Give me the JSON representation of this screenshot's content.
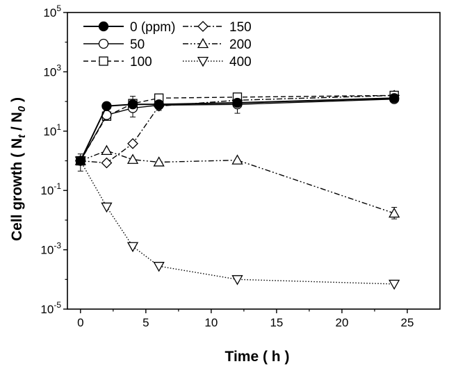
{
  "chart_data": {
    "type": "line",
    "xlabel": "Time ( h )",
    "ylabel_parts": [
      "Cell growth ( N",
      "t",
      " / N",
      "0",
      " )"
    ],
    "xlim": [
      -1,
      27.5
    ],
    "ylim_log10": [
      -5,
      5
    ],
    "yscale": "log",
    "x_ticks": [
      0,
      5,
      10,
      15,
      20,
      25
    ],
    "x_tick_labels": [
      "0",
      "5",
      "10",
      "15",
      "20",
      "25"
    ],
    "y_tick_exponents": [
      5,
      3,
      1,
      -1,
      -3,
      -5
    ],
    "y_tick_base": "10",
    "y_tick_exp_labels": [
      "5",
      "3",
      "1",
      "-1",
      "-3",
      "-5"
    ],
    "legend_position": "top-left",
    "series": [
      {
        "name": "0 (ppm)",
        "marker": "filled-circle",
        "dash": "solid",
        "stroke_width": 2,
        "x": [
          0,
          2,
          4,
          6,
          12,
          24
        ],
        "y": [
          1,
          70,
          80,
          80,
          90,
          130
        ]
      },
      {
        "name": "50",
        "marker": "circle",
        "dash": "solid",
        "stroke_width": 1.4,
        "x": [
          0,
          2,
          4,
          6,
          12,
          24
        ],
        "y": [
          1,
          35,
          60,
          75,
          80,
          120
        ]
      },
      {
        "name": "100",
        "marker": "square",
        "dash": "dashed",
        "stroke_width": 1.4,
        "x": [
          0,
          2,
          4,
          6,
          12,
          24
        ],
        "y": [
          1,
          32,
          85,
          130,
          140,
          160
        ]
      },
      {
        "name": "150",
        "marker": "diamond",
        "dash": "dashdot",
        "stroke_width": 1.4,
        "x": [
          0,
          2,
          4,
          6,
          12,
          24
        ],
        "y": [
          1,
          0.85,
          3.8,
          70,
          110,
          160
        ]
      },
      {
        "name": "200",
        "marker": "triangle-up",
        "dash": "dashdotdot",
        "stroke_width": 1.4,
        "x": [
          0,
          2,
          4,
          6,
          12,
          24
        ],
        "y": [
          1,
          2.2,
          1.1,
          0.9,
          1.05,
          0.017
        ]
      },
      {
        "name": "400",
        "marker": "triangle-down",
        "dash": "dotted",
        "stroke_width": 1.4,
        "x": [
          0,
          2,
          6,
          4,
          12,
          24
        ],
        "y": [
          1,
          0.028,
          0.00028,
          0.0013,
          0.0001,
          7e-05
        ]
      }
    ]
  }
}
